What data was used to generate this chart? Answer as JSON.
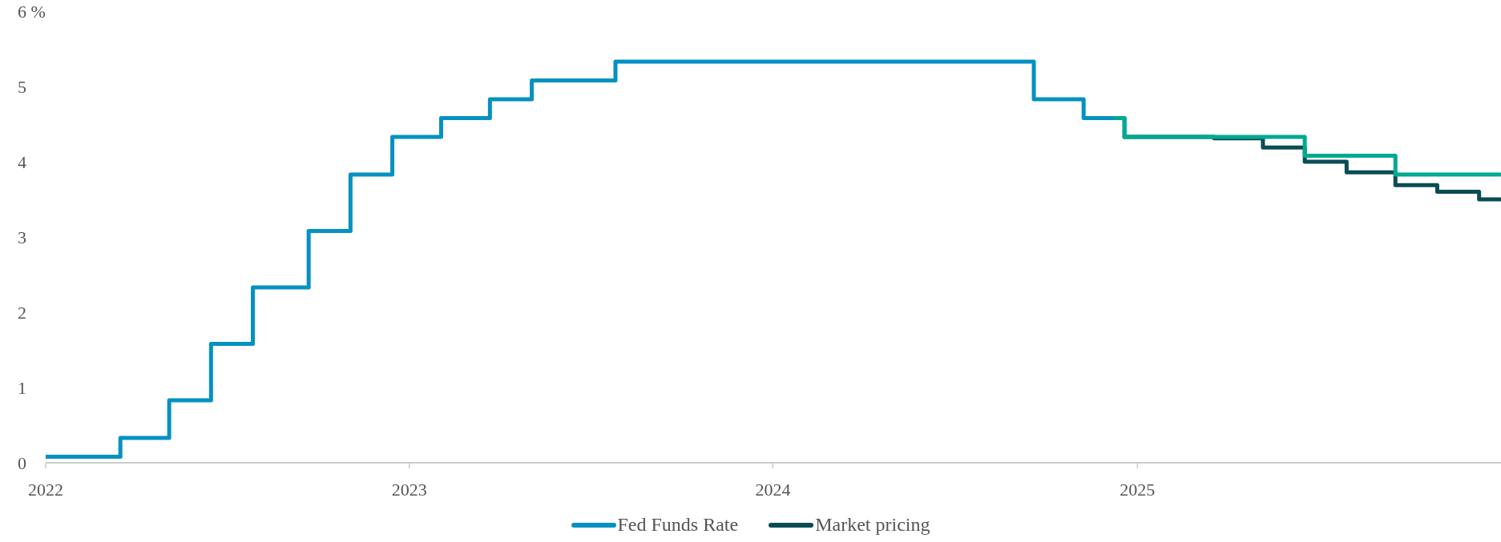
{
  "chart_data": {
    "type": "step",
    "xlim": [
      "2022",
      "2026"
    ],
    "xticks": [
      "2022",
      "2023",
      "2024",
      "2025"
    ],
    "ylim": [
      0,
      6
    ],
    "yticks": [
      0,
      1,
      2,
      3,
      4,
      5,
      {
        "value": 6,
        "label": "6 %"
      }
    ],
    "legend": "bottom",
    "marker": "none",
    "line_style": "solid",
    "series": [
      {
        "name": "Fed Funds Rate",
        "color": "#0591c1",
        "x": [
          "2022-01-01",
          "2022-03-17",
          "2022-05-05",
          "2022-06-16",
          "2022-07-28",
          "2022-09-22",
          "2022-11-03",
          "2022-12-15",
          "2023-02-02",
          "2023-03-23",
          "2023-05-04",
          "2023-07-27",
          "2024-09-19",
          "2024-11-08",
          "2024-12-19"
        ],
        "values": [
          0.08,
          0.33,
          0.83,
          1.58,
          2.33,
          3.08,
          3.83,
          4.33,
          4.58,
          4.83,
          5.08,
          5.33,
          4.83,
          4.58,
          4.33
        ]
      },
      {
        "name": "Market pricing",
        "color": "#0a4c54",
        "x": [
          "2024-12-19",
          "2025-03-19",
          "2025-05-07",
          "2025-06-18",
          "2025-07-30",
          "2025-09-17",
          "2025-10-29",
          "2025-12-10",
          "2025-12-31"
        ],
        "values": [
          4.33,
          4.31,
          4.19,
          4.0,
          3.86,
          3.69,
          3.6,
          3.5,
          3.5
        ]
      },
      {
        "color": "#00a991",
        "x": [
          "2024-12-10",
          "2024-12-19",
          "2025-06-18",
          "2025-09-17",
          "2025-12-31"
        ],
        "values": [
          4.58,
          4.33,
          4.08,
          3.83,
          3.83
        ]
      }
    ]
  }
}
